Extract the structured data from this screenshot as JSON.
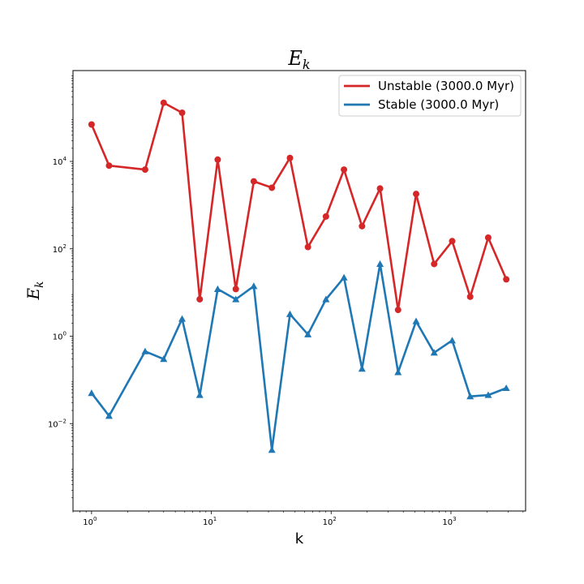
{
  "chart_data": {
    "type": "line",
    "title": "E_k",
    "title_main": "E",
    "title_sub": "k",
    "xlabel": "k",
    "ylabel": "E_k",
    "ylabel_main": "E",
    "ylabel_sub": "k",
    "xscale": "log",
    "yscale": "log",
    "xlim": [
      0.7,
      4200
    ],
    "ylim": [
      0.0001,
      1200000
    ],
    "legend_position": "top-right",
    "x_ticks": [
      {
        "value": 1,
        "base": "10",
        "exp": "0"
      },
      {
        "value": 10,
        "base": "10",
        "exp": "1"
      },
      {
        "value": 100,
        "base": "10",
        "exp": "2"
      },
      {
        "value": 1000,
        "base": "10",
        "exp": "3"
      }
    ],
    "y_ticks": [
      {
        "value": 0.01,
        "base": "10",
        "exp": "−2"
      },
      {
        "value": 1,
        "base": "10",
        "exp": "0"
      },
      {
        "value": 100,
        "base": "10",
        "exp": "2"
      },
      {
        "value": 10000,
        "base": "10",
        "exp": "4"
      }
    ],
    "series": [
      {
        "name": "Unstable (3000.0 Myr)",
        "color": "#d62728",
        "marker": "circle",
        "x": [
          1,
          1.4,
          2.8,
          4,
          5.7,
          8,
          11.3,
          16,
          22.6,
          32,
          45.3,
          64,
          90.5,
          128,
          181,
          256,
          362,
          512,
          724,
          1024,
          1448,
          2048,
          2896
        ],
        "y": [
          70000,
          8000,
          6500,
          220000,
          130000,
          7,
          11000,
          12,
          3500,
          2500,
          12000,
          110,
          550,
          6500,
          330,
          2400,
          4,
          1800,
          45,
          150,
          8,
          180,
          20
        ]
      },
      {
        "name": "Stable (3000.0 Myr)",
        "color": "#1f77b4",
        "marker": "triangle",
        "x": [
          1,
          1.4,
          2.8,
          4,
          5.7,
          8,
          11.3,
          16,
          22.6,
          32,
          45.3,
          64,
          90.5,
          128,
          181,
          256,
          362,
          512,
          724,
          1024,
          1448,
          2048,
          2896
        ],
        "y": [
          0.05,
          0.015,
          0.45,
          0.3,
          2.5,
          0.045,
          12,
          7,
          14,
          0.0025,
          3.2,
          1.1,
          7,
          22,
          0.18,
          45,
          0.15,
          2.2,
          0.42,
          0.8,
          0.042,
          0.045,
          0.065
        ]
      }
    ]
  }
}
